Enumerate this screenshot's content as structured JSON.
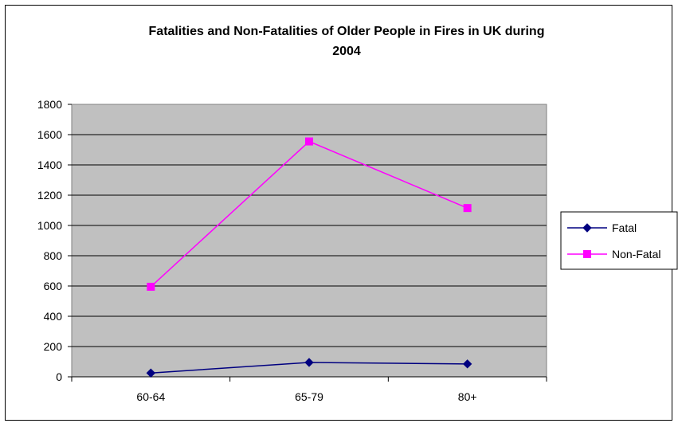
{
  "chart_data": {
    "type": "line",
    "title_line1": "Fatalities and Non-Fatalities of Older People in Fires in UK during",
    "title_line2": "2004",
    "categories": [
      "60-64",
      "65-79",
      "80+"
    ],
    "ylim": [
      0,
      1800
    ],
    "yticks": [
      0,
      200,
      400,
      600,
      800,
      1000,
      1200,
      1400,
      1600,
      1800
    ],
    "grid": true,
    "legend_position": "right",
    "plot_background": "#c0c0c0",
    "series": [
      {
        "name": "Fatal",
        "values": [
          25,
          95,
          85
        ],
        "color": "#000080",
        "marker": "diamond"
      },
      {
        "name": "Non-Fatal",
        "values": [
          595,
          1555,
          1115
        ],
        "color": "#ff00ff",
        "marker": "square"
      }
    ]
  }
}
